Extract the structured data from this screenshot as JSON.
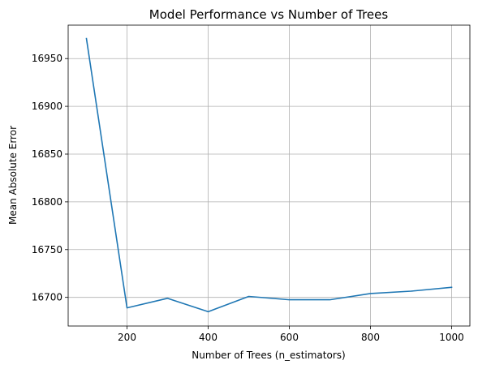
{
  "chart_data": {
    "type": "line",
    "title": "Model Performance vs Number of Trees",
    "xlabel": "Number of Trees (n_estimators)",
    "ylabel": "Mean Absolute Error",
    "xlim": [
      55,
      1045
    ],
    "ylim": [
      16670,
      16985
    ],
    "xticks": [
      200,
      400,
      600,
      800,
      1000
    ],
    "yticks": [
      16700,
      16750,
      16800,
      16850,
      16900,
      16950
    ],
    "grid": true,
    "series": [
      {
        "color": "#1f77b4",
        "x": [
          100,
          200,
          300,
          400,
          500,
          600,
          700,
          800,
          900,
          1000
        ],
        "y": [
          16971,
          16689,
          16699,
          16685,
          16701,
          16697.5,
          16697.5,
          16704,
          16706.5,
          16710.5
        ]
      }
    ]
  }
}
